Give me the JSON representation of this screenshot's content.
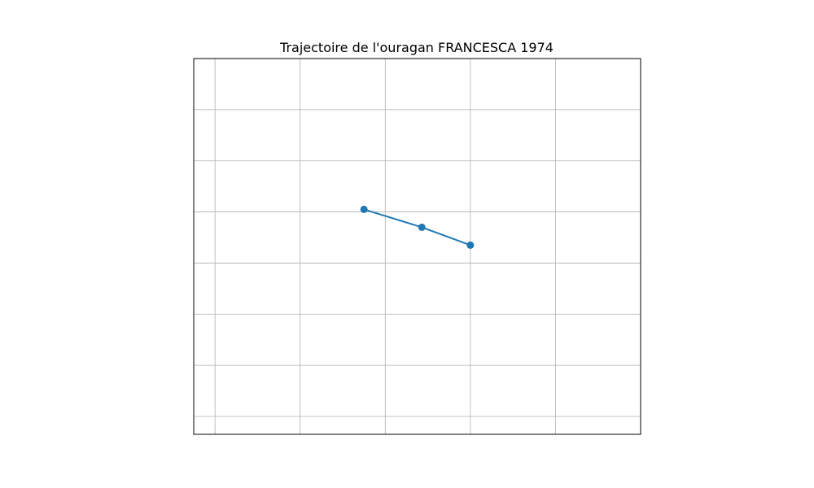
{
  "chart_data": {
    "type": "line",
    "title": "Trajectoire de l'ouragan FRANCESCA 1974",
    "xlabel": "",
    "ylabel": "",
    "xlim": [
      -0.25,
      5.0
    ],
    "ylim": [
      -0.35,
      7.0
    ],
    "xgrid": [
      0,
      1,
      2,
      3,
      4
    ],
    "ygrid": [
      0,
      1,
      2,
      3,
      4,
      5,
      6,
      7
    ],
    "grid": true,
    "x": [
      1.75,
      2.43,
      3.0
    ],
    "y": [
      4.05,
      3.7,
      3.35
    ],
    "series": [
      {
        "x": [
          1.75,
          2.43,
          3.0
        ],
        "y": [
          4.05,
          3.7,
          3.35
        ],
        "color": "#1f77b4",
        "marker": "circle"
      }
    ]
  }
}
